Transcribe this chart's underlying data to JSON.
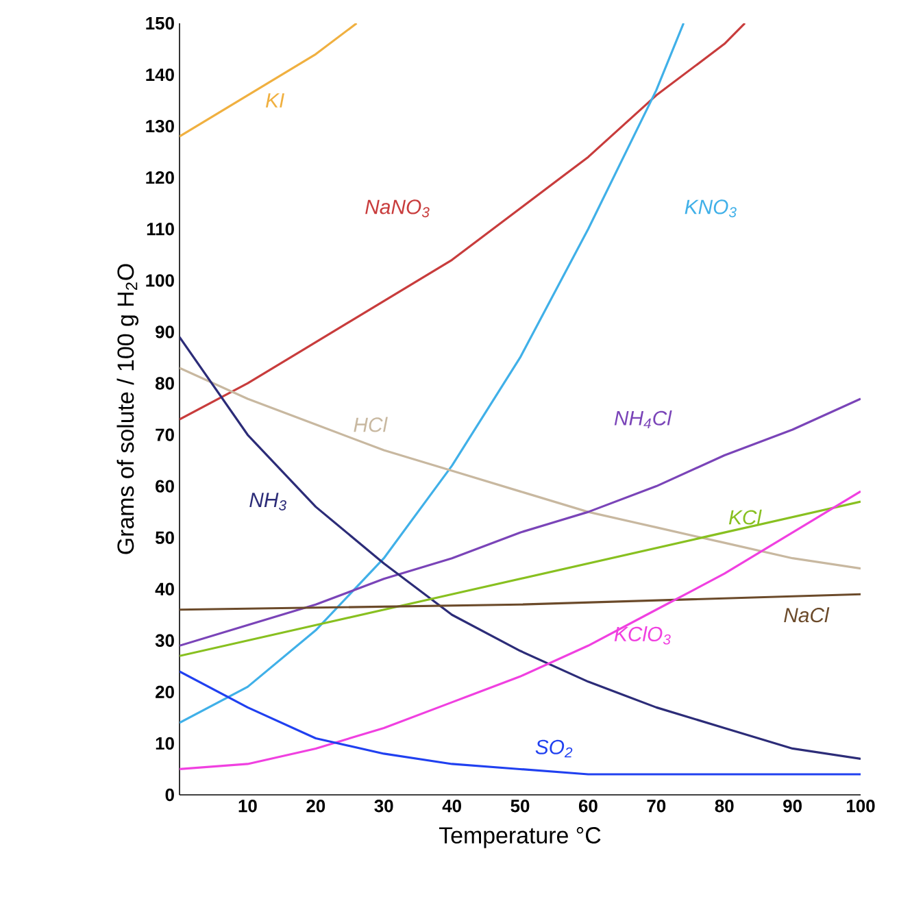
{
  "chart_data": {
    "type": "line",
    "xlabel": "Temperature °C",
    "ylabel": "Grams of solute / 100 g H$_{2}$O",
    "xlim": [
      0,
      100
    ],
    "ylim": [
      0,
      150
    ],
    "xticks": [
      10,
      20,
      30,
      40,
      50,
      60,
      70,
      80,
      90,
      100
    ],
    "yticks": [
      0,
      10,
      20,
      30,
      40,
      50,
      60,
      70,
      80,
      90,
      100,
      110,
      120,
      130,
      140,
      150
    ],
    "series": [
      {
        "name": "KI",
        "color": "#f0b040",
        "x": [
          0,
          10,
          20,
          26
        ],
        "values": [
          128,
          136,
          144,
          150
        ]
      },
      {
        "name": "NaNO$_{3}$",
        "color": "#c83c3c",
        "x": [
          0,
          10,
          20,
          30,
          40,
          50,
          60,
          70,
          80,
          83
        ],
        "values": [
          73,
          80,
          88,
          96,
          104,
          114,
          124,
          136,
          146,
          150
        ]
      },
      {
        "name": "KNO$_{3}$",
        "color": "#40b0e8",
        "x": [
          0,
          10,
          20,
          30,
          40,
          50,
          60,
          70,
          74
        ],
        "values": [
          14,
          21,
          32,
          46,
          64,
          85,
          110,
          137,
          150
        ]
      },
      {
        "name": "HCl",
        "color": "#c8b8a0",
        "x": [
          0,
          10,
          20,
          30,
          40,
          50,
          60,
          70,
          80,
          90,
          100
        ],
        "values": [
          83,
          77,
          72,
          67,
          63,
          59,
          55,
          52,
          49,
          46,
          44
        ]
      },
      {
        "name": "NH$_{4}$Cl",
        "color": "#7a44b8",
        "x": [
          0,
          10,
          20,
          30,
          40,
          50,
          60,
          70,
          80,
          90,
          100
        ],
        "values": [
          29,
          33,
          37,
          42,
          46,
          51,
          55,
          60,
          66,
          71,
          77
        ]
      },
      {
        "name": "NH$_{3}$",
        "color": "#2c2c78",
        "x": [
          0,
          10,
          20,
          30,
          40,
          50,
          60,
          70,
          80,
          90,
          100
        ],
        "values": [
          89,
          70,
          56,
          45,
          35,
          28,
          22,
          17,
          13,
          9,
          7
        ]
      },
      {
        "name": "KCl",
        "color": "#88c020",
        "x": [
          0,
          20,
          40,
          60,
          80,
          100
        ],
        "values": [
          27,
          33,
          39,
          45,
          51,
          57
        ]
      },
      {
        "name": "NaCl",
        "color": "#6b4a2a",
        "x": [
          0,
          50,
          100
        ],
        "values": [
          36,
          37,
          39
        ]
      },
      {
        "name": "KClO$_{3}$",
        "color": "#f040e0",
        "x": [
          0,
          10,
          20,
          30,
          40,
          50,
          60,
          70,
          80,
          90,
          100
        ],
        "values": [
          5,
          6,
          9,
          13,
          18,
          23,
          29,
          36,
          43,
          51,
          59
        ]
      },
      {
        "name": "SO$_{2}$",
        "color": "#2040f0",
        "x": [
          0,
          10,
          20,
          30,
          40,
          50,
          60,
          80,
          100
        ],
        "values": [
          24,
          17,
          11,
          8,
          6,
          5,
          4,
          4,
          4
        ]
      }
    ]
  }
}
